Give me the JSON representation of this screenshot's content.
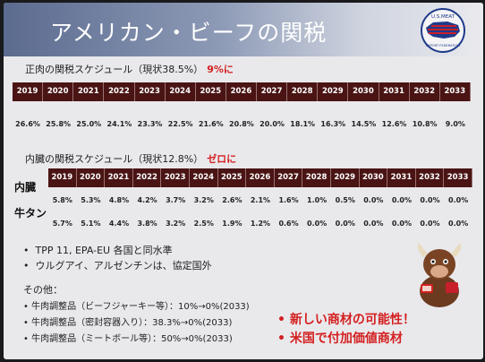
{
  "slide": {
    "title": "アメリカン・ビーフの関税",
    "logo": {
      "text_top": "U.S.MEAT",
      "text_bottom": "EXPORT FEDERATION",
      "colors": {
        "red": "#c8202a",
        "blue": "#1f3a8a"
      }
    }
  },
  "muscle_section": {
    "label": "正肉の関税スケジュール（現状38.5%）",
    "target": "9%に"
  },
  "years": [
    "2019",
    "2020",
    "2021",
    "2022",
    "2023",
    "2024",
    "2025",
    "2026",
    "2027",
    "2028",
    "2029",
    "2030",
    "2031",
    "2032",
    "2033"
  ],
  "muscle_rates": [
    "26.6%",
    "25.8%",
    "25.0%",
    "24.1%",
    "23.3%",
    "22.5%",
    "21.6%",
    "20.8%",
    "20.0%",
    "18.1%",
    "16.3%",
    "14.5%",
    "12.6%",
    "10.8%",
    "9.0%"
  ],
  "offal_section": {
    "label": "内臓の関税スケジュール（現状12.8%）",
    "target": "ゼロに"
  },
  "offal_rows": [
    {
      "label": "内臓",
      "values": [
        "5.8%",
        "5.3%",
        "4.8%",
        "4.2%",
        "3.7%",
        "3.2%",
        "2.6%",
        "2.1%",
        "1.6%",
        "1.0%",
        "0.5%",
        "0.0%",
        "0.0%",
        "0.0%",
        "0.0%"
      ]
    },
    {
      "label": "牛タン",
      "values": [
        "5.7%",
        "5.1%",
        "4.4%",
        "3.8%",
        "3.2%",
        "2.5%",
        "1.9%",
        "1.2%",
        "0.6%",
        "0.0%",
        "0.0%",
        "0.0%",
        "0.0%",
        "0.0%",
        "0.0%"
      ]
    }
  ],
  "bullets": [
    "TPP 11, EPA-EU 各国と同水準",
    "ウルグアイ、アルゼンチンは、協定国外"
  ],
  "other": {
    "heading": "その他：",
    "items": [
      "牛肉調整品（ビーフジャーキー等）：10%→0%(2033)",
      "牛肉調整品（密封容器入り）：38.3%→0%(2033)",
      "牛肉調整品（ミートボール等）：50%→0%(2033)"
    ]
  },
  "callouts": [
    "新しい商材の可能性！",
    "米国で付加価値商材"
  ],
  "colors": {
    "table_header": "#4a1414",
    "highlight": "#d42020"
  }
}
